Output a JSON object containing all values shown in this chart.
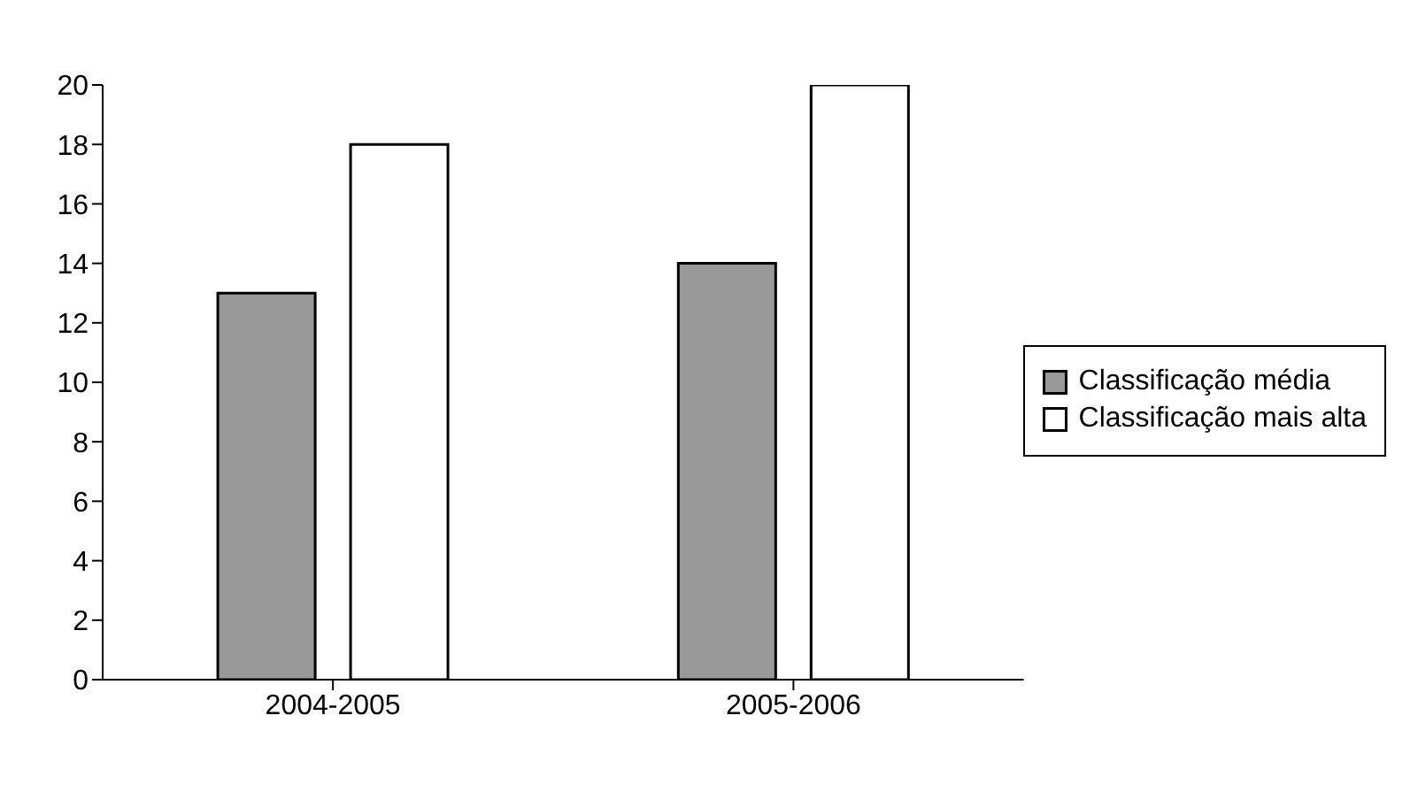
{
  "chart_data": {
    "type": "bar",
    "categories": [
      "2004-2005",
      "2005-2006"
    ],
    "series": [
      {
        "name": "Classificação média",
        "color": "#999999",
        "values": [
          13,
          14
        ]
      },
      {
        "name": "Classificação mais alta",
        "color": "#ffffff",
        "values": [
          18,
          20
        ]
      }
    ],
    "ylim": [
      0,
      20
    ],
    "yticks": [
      0,
      2,
      4,
      6,
      8,
      10,
      12,
      14,
      16,
      18,
      20
    ],
    "grid": false,
    "legend": "right"
  }
}
